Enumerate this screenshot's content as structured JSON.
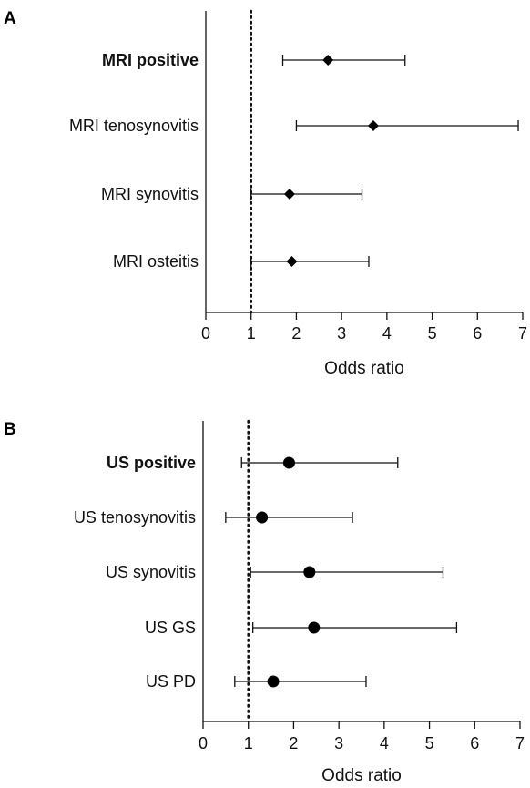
{
  "chart_data": [
    {
      "type": "forest",
      "panel_label": "A",
      "marker": "diamond",
      "xlabel": "Odds ratio",
      "xlim": [
        0,
        7
      ],
      "xticks": [
        0,
        1,
        2,
        3,
        4,
        5,
        6,
        7
      ],
      "reference_line": 1,
      "rows": [
        {
          "label": "MRI positive",
          "bold": true,
          "or": 2.7,
          "lo": 1.7,
          "hi": 4.4
        },
        {
          "label": "MRI tenosynovitis",
          "bold": false,
          "or": 3.7,
          "lo": 2.0,
          "hi": 6.9
        },
        {
          "label": "MRI synovitis",
          "bold": false,
          "or": 1.85,
          "lo": 1.0,
          "hi": 3.45
        },
        {
          "label": "MRI osteitis",
          "bold": false,
          "or": 1.9,
          "lo": 1.0,
          "hi": 3.6
        }
      ]
    },
    {
      "type": "forest",
      "panel_label": "B",
      "marker": "circle",
      "xlabel": "Odds ratio",
      "xlim": [
        0,
        7
      ],
      "xticks": [
        0,
        1,
        2,
        3,
        4,
        5,
        6,
        7
      ],
      "reference_line": 1,
      "rows": [
        {
          "label": "US positive",
          "bold": true,
          "or": 1.9,
          "lo": 0.85,
          "hi": 4.3
        },
        {
          "label": "US tenosynovitis",
          "bold": false,
          "or": 1.3,
          "lo": 0.5,
          "hi": 3.3
        },
        {
          "label": "US synovitis",
          "bold": false,
          "or": 2.35,
          "lo": 1.05,
          "hi": 5.3
        },
        {
          "label": "US GS",
          "bold": false,
          "or": 2.45,
          "lo": 1.1,
          "hi": 5.6
        },
        {
          "label": "US PD",
          "bold": false,
          "or": 1.55,
          "lo": 0.7,
          "hi": 3.6
        }
      ]
    }
  ]
}
